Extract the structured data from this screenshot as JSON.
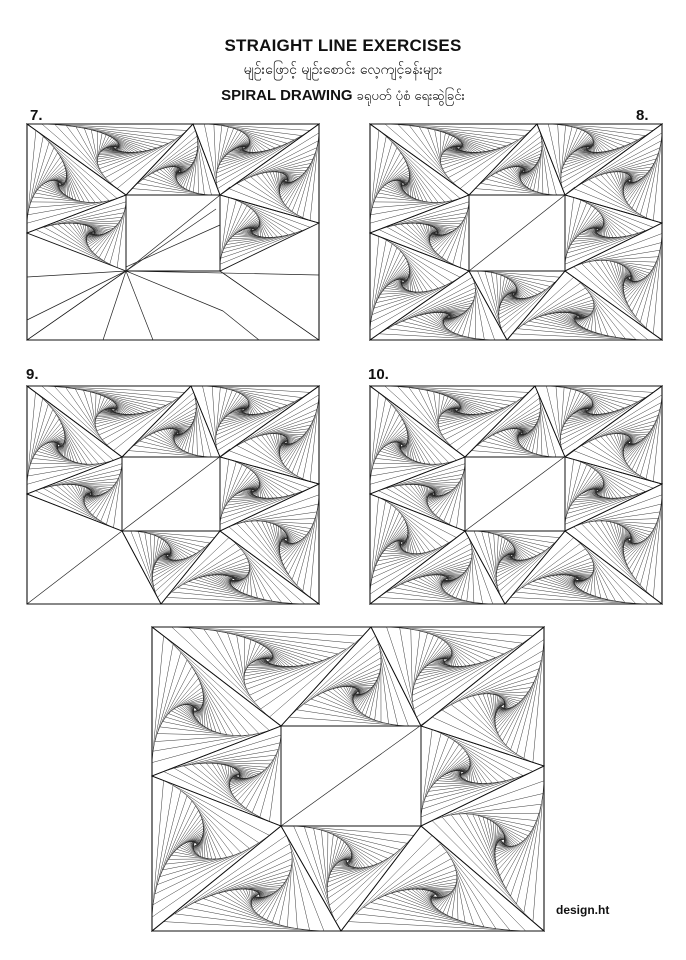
{
  "header": {
    "title": "STRAIGHT LINE EXERCISES",
    "subtitle": "မျဉ်းဖြောင့် မျဉ်းစောင်း လေ့ကျင့်ခန်းများ",
    "heading_en": "SPIRAL DRAWING",
    "heading_my": "ခရုပတ် ပုံစံ ရေးဆွဲခြင်း"
  },
  "exercises": [
    {
      "number": "7."
    },
    {
      "number": "8."
    },
    {
      "number": "9."
    },
    {
      "number": "10."
    }
  ],
  "footer": {
    "credit": "design.ht"
  }
}
